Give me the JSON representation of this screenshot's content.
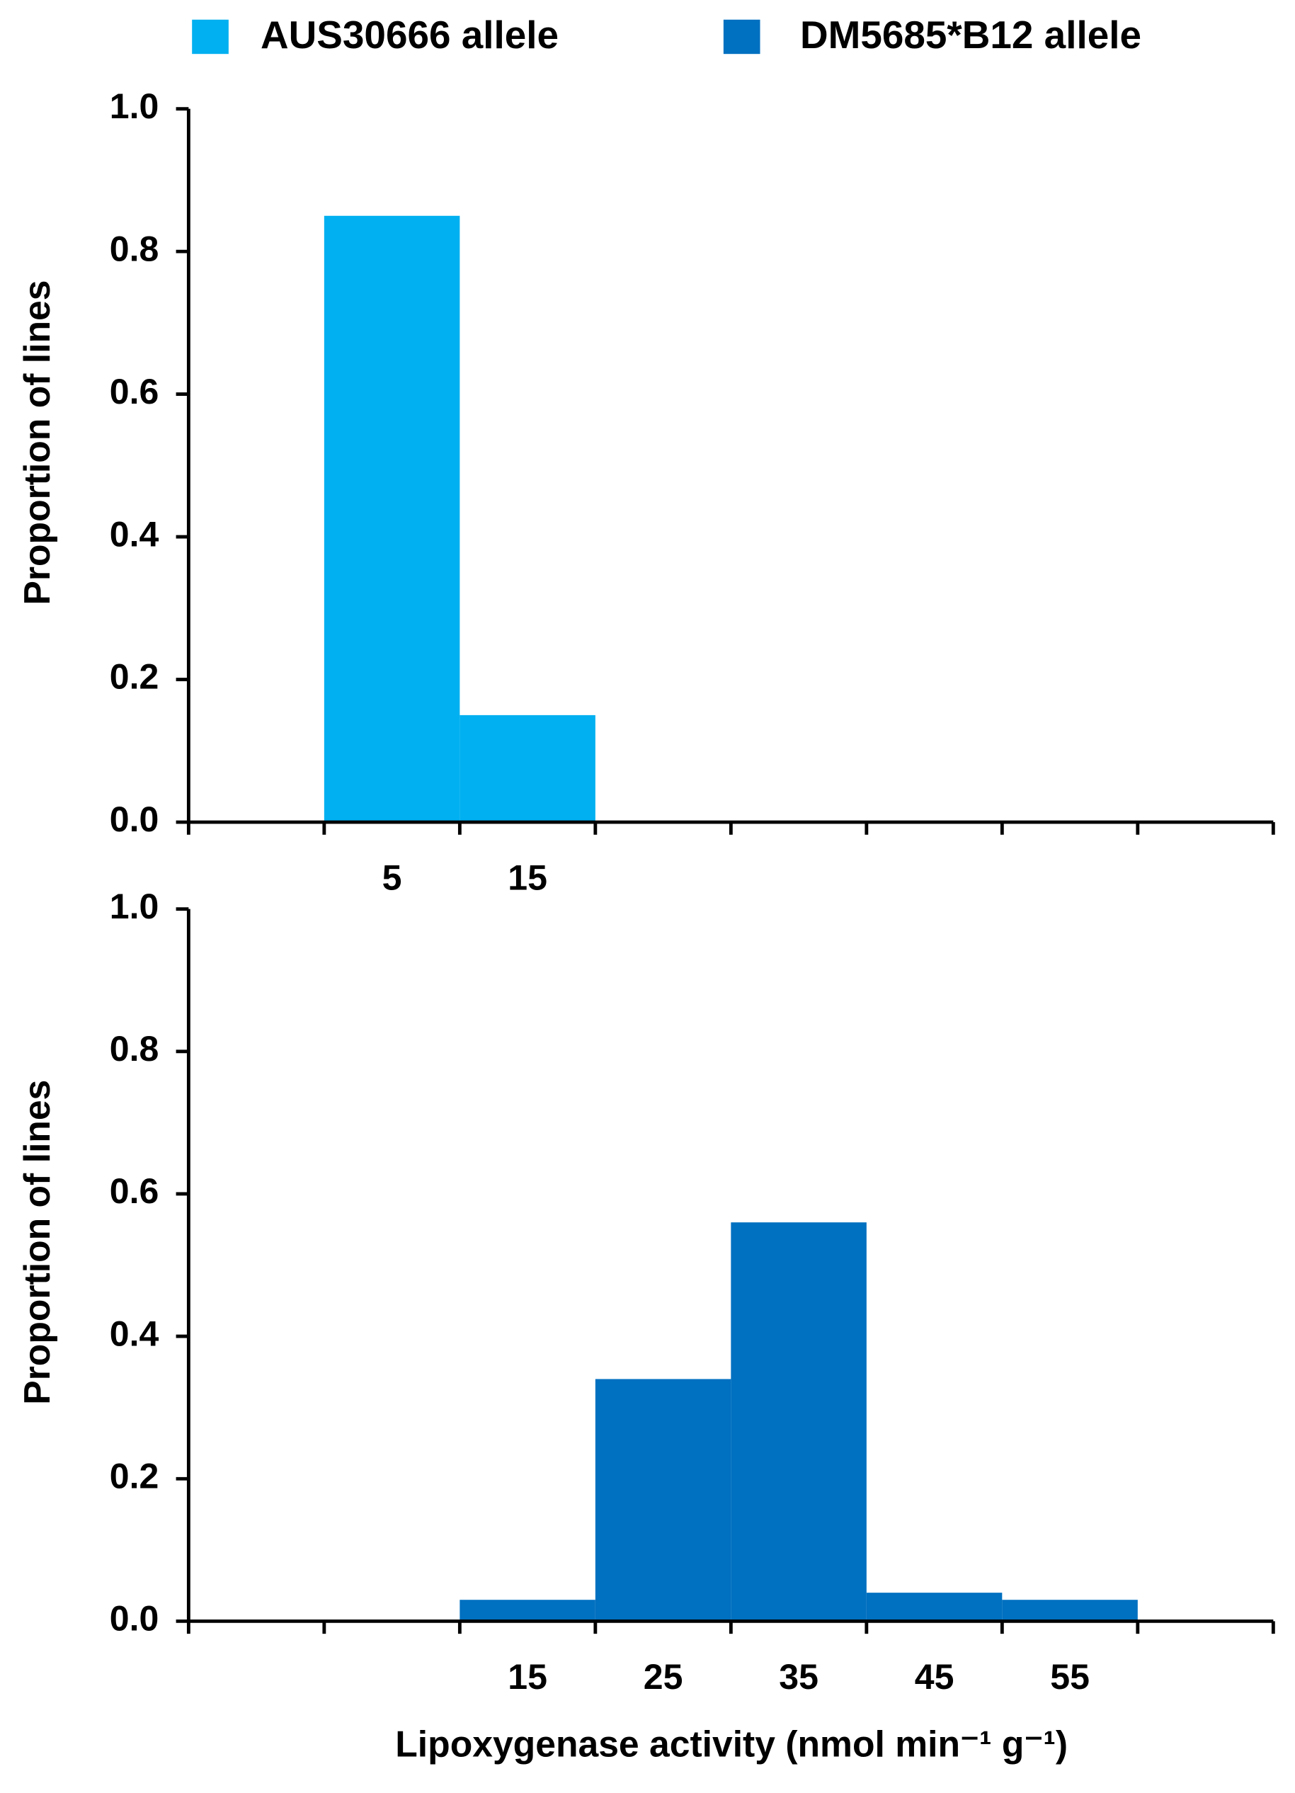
{
  "chart_data": [
    {
      "type": "histogram",
      "series": [
        {
          "name": "AUS30666 allele",
          "color": "#00b0f0",
          "bins": [
            0,
            10,
            20
          ],
          "values": [
            0.85,
            0.15
          ]
        }
      ],
      "y_label": "Proportion of lines",
      "xlim": [
        -10,
        70
      ],
      "xtick_marks": [
        -10,
        0,
        10,
        20,
        30,
        40,
        50,
        60,
        70
      ],
      "xticks": [
        5,
        15
      ],
      "ylim": [
        0,
        1
      ],
      "yticks": [
        {
          "value": 0,
          "label": "0.0"
        },
        {
          "value": 0.2,
          "label": "0.2"
        },
        {
          "value": 0.4,
          "label": "0.4"
        },
        {
          "value": 0.6,
          "label": "0.6"
        },
        {
          "value": 0.8,
          "label": "0.8"
        },
        {
          "value": 1,
          "label": "1.0"
        }
      ]
    },
    {
      "type": "histogram",
      "series": [
        {
          "name": "DM5685*B12 allele",
          "color": "#0070c0",
          "bins": [
            10,
            20,
            30,
            40,
            50,
            60
          ],
          "values": [
            0.03,
            0.34,
            0.56,
            0.04,
            0.03
          ]
        }
      ],
      "y_label": "Proportion of lines",
      "x_label": "Lipoxygenase activity (nmol min⁻¹ g⁻¹)",
      "xlim": [
        -10,
        70
      ],
      "xtick_marks": [
        -10,
        0,
        10,
        20,
        30,
        40,
        50,
        60,
        70
      ],
      "xticks": [
        15,
        25,
        35,
        45,
        55
      ],
      "ylim": [
        0,
        1
      ],
      "yticks": [
        {
          "value": 0,
          "label": "0.0"
        },
        {
          "value": 0.2,
          "label": "0.2"
        },
        {
          "value": 0.4,
          "label": "0.4"
        },
        {
          "value": 0.6,
          "label": "0.6"
        },
        {
          "value": 0.8,
          "label": "0.8"
        },
        {
          "value": 1,
          "label": "1.0"
        }
      ]
    }
  ]
}
